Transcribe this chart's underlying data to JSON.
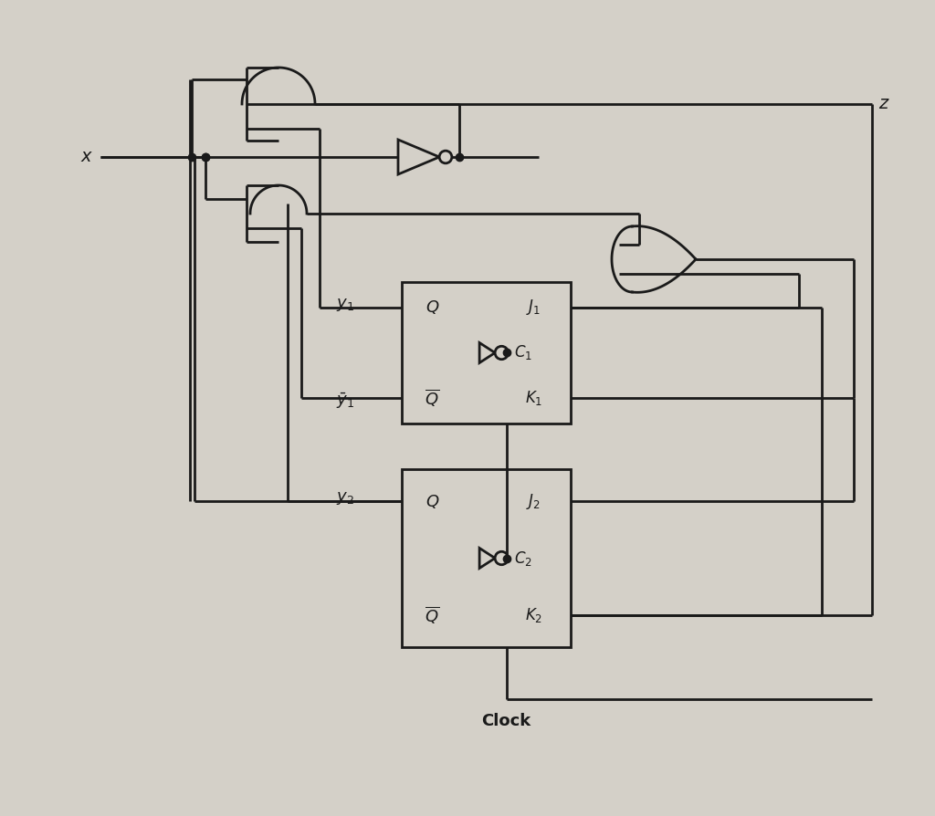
{
  "bg_color": "#d4d0c8",
  "line_color": "#1a1a1a",
  "line_width": 2.0,
  "dot_size": 6,
  "fig_width": 10.24,
  "fig_height": 8.94,
  "x_label": "x",
  "z_label": "z",
  "clock_label": "Clock",
  "y1_label": "$y_1$",
  "y1bar_label": "$\\bar{y}_1$",
  "y2_label": "$y_2$",
  "Q_label": "$Q$",
  "Qbar_label": "$\\overline{Q}$",
  "J1_label": "$J_1$",
  "C1_label": "$C_1$",
  "K1_label": "$K_1$",
  "J2_label": "$J_2$",
  "C2_label": "$C_2$",
  "K2_label": "$K_2$"
}
